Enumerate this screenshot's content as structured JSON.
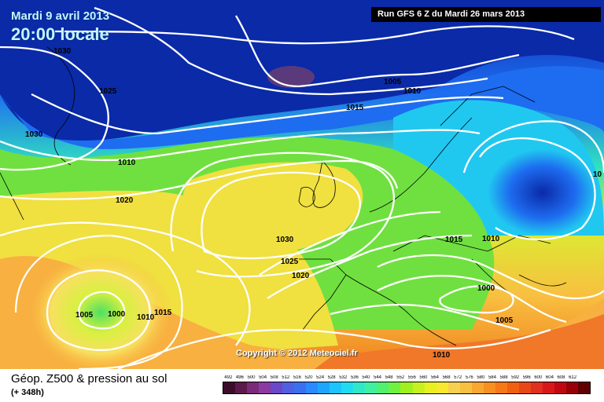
{
  "header": {
    "date": "Mardi 9 avril 2013",
    "time": "20:00 locale",
    "run": "Run GFS 6 Z du Mardi 26 mars 2013"
  },
  "copyright": "Copyright © 2012 Meteociel.fr",
  "footer": {
    "title": "Géop. Z500 & pression au sol",
    "subtitle": "(+ 348h)"
  },
  "legend": {
    "values": [
      "492",
      "496",
      "500",
      "504",
      "508",
      "512",
      "516",
      "520",
      "524",
      "528",
      "532",
      "536",
      "540",
      "544",
      "548",
      "552",
      "556",
      "560",
      "564",
      "568",
      "572",
      "576",
      "580",
      "584",
      "588",
      "592",
      "596",
      "600",
      "604",
      "608",
      "612"
    ],
    "colors": [
      "#3a0e2a",
      "#5c1a4a",
      "#7a2a78",
      "#8a3aa0",
      "#6a48c8",
      "#5060e0",
      "#3a70f0",
      "#2a8aff",
      "#1ea6ff",
      "#1ec4ff",
      "#20dcf0",
      "#30e8c8",
      "#40f0a0",
      "#50f070",
      "#70f040",
      "#a0f020",
      "#c8f020",
      "#e8f020",
      "#f8e830",
      "#f8d050",
      "#f8c040",
      "#f8a830",
      "#f89020",
      "#f87818",
      "#f06010",
      "#e84818",
      "#e03020",
      "#d81818",
      "#c00810",
      "#980008",
      "#600000"
    ]
  },
  "isobars": [
    "1030",
    "1025",
    "1030",
    "1010",
    "1020",
    "1030",
    "1025",
    "1020",
    "1005",
    "1000",
    "1010",
    "1015",
    "1005",
    "1010",
    "1015",
    "1015",
    "1010",
    "1000",
    "1005",
    "1010",
    "10"
  ],
  "colors": {
    "deep_blue": "#0a2aa8",
    "blue": "#1e6cf0",
    "cyan": "#20c8f0",
    "green": "#70e040",
    "yellow": "#f0e040",
    "orange": "#f09030",
    "red": "#e04020"
  }
}
